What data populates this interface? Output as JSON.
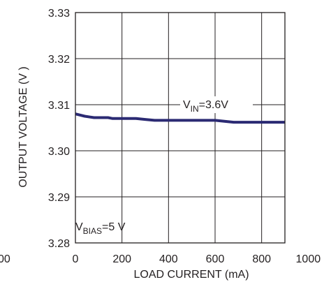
{
  "chart_data": {
    "type": "line",
    "title": "",
    "xlabel": "LOAD CURRENT (mA)",
    "ylabel": "OUTPUT VOLTAGE (V )",
    "xlim": [
      0,
      900
    ],
    "ylim": [
      3.28,
      3.33
    ],
    "x_ticks": [
      "0",
      "200",
      "400",
      "600",
      "800",
      "1000"
    ],
    "y_ticks": [
      "3.28",
      "3.29",
      "3.30",
      "3.31",
      "3.32",
      "3.33"
    ],
    "left_edge_tick": "00",
    "grid": true,
    "series": [
      {
        "name": "VIN=3.6V",
        "color": "#2b2a73",
        "x": [
          0,
          40,
          80,
          100,
          140,
          160,
          200,
          260,
          300,
          340,
          400,
          500,
          560,
          600,
          640,
          680,
          720,
          800,
          900
        ],
        "y": [
          3.308,
          3.3075,
          3.3072,
          3.3072,
          3.3072,
          3.307,
          3.307,
          3.307,
          3.3068,
          3.3066,
          3.3066,
          3.3066,
          3.3066,
          3.3066,
          3.3064,
          3.3062,
          3.3062,
          3.3062,
          3.3062
        ]
      }
    ],
    "annotations": {
      "vin": {
        "main": "V",
        "sub": "IN",
        "rest": "=3.6V"
      },
      "vbias": {
        "main": "V",
        "sub": "BIAS",
        "rest": "=5 V"
      }
    }
  }
}
